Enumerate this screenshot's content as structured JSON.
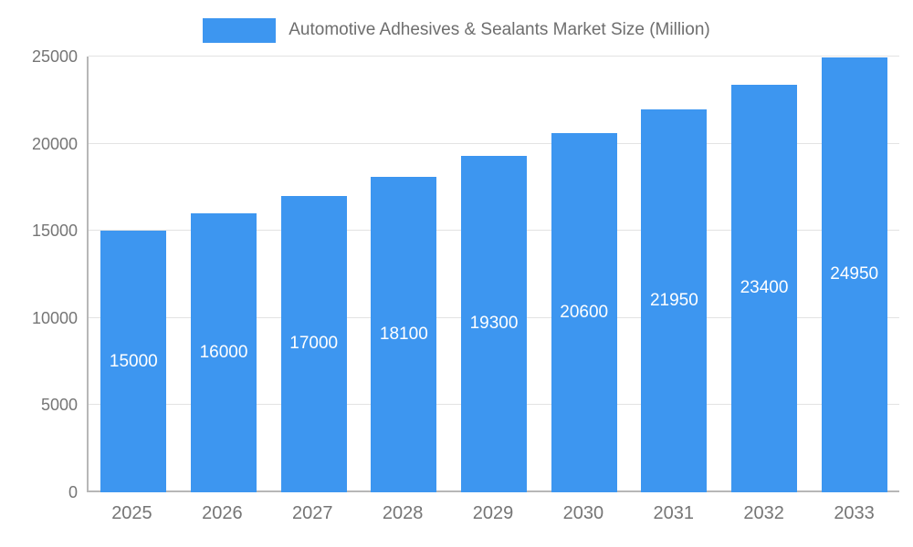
{
  "chart_data": {
    "type": "bar",
    "title": "Automotive Adhesives & Sealants Market Size (Million)",
    "categories": [
      "2025",
      "2026",
      "2027",
      "2028",
      "2029",
      "2030",
      "2031",
      "2032",
      "2033"
    ],
    "values": [
      15000,
      16000,
      17000,
      18100,
      19300,
      20600,
      21950,
      23400,
      24950
    ],
    "xlabel": "",
    "ylabel": "",
    "ylim": [
      0,
      25000
    ],
    "y_ticks": [
      0,
      5000,
      10000,
      15000,
      20000,
      25000
    ],
    "grid": true,
    "legend_position": "top",
    "colors": {
      "bar": "#3d96f0",
      "bar_label": "#ffffff",
      "axis_text": "#757575",
      "gridline": "#e3e3e3",
      "axis_line": "#b7b7b7",
      "background": "#ffffff"
    }
  }
}
